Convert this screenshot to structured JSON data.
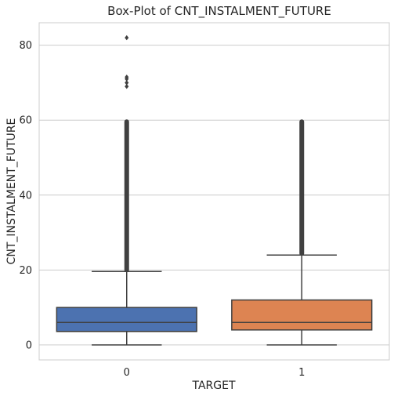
{
  "chart_data": {
    "type": "box",
    "title": "Box-Plot of CNT_INSTALMENT_FUTURE",
    "xlabel": "TARGET",
    "ylabel": "CNT_INSTALMENT_FUTURE",
    "categories": [
      "0",
      "1"
    ],
    "y_ticks": [
      0,
      20,
      40,
      60,
      80
    ],
    "ylim": [
      -4,
      86
    ],
    "grid": "horizontal",
    "series": [
      {
        "category": "0",
        "color": "#4c72b0",
        "whisker_low": 0,
        "q1": 3.6,
        "median": 6,
        "q3": 10,
        "whisker_high": 19.6,
        "outlier_band": [
          19.6,
          60
        ],
        "outliers": [
          69,
          70,
          71,
          71.5,
          82
        ]
      },
      {
        "category": "1",
        "color": "#dd8452",
        "whisker_low": 0,
        "q1": 4,
        "median": 6,
        "q3": 12,
        "whisker_high": 24,
        "outlier_band": [
          24,
          60
        ],
        "outliers": []
      }
    ]
  }
}
